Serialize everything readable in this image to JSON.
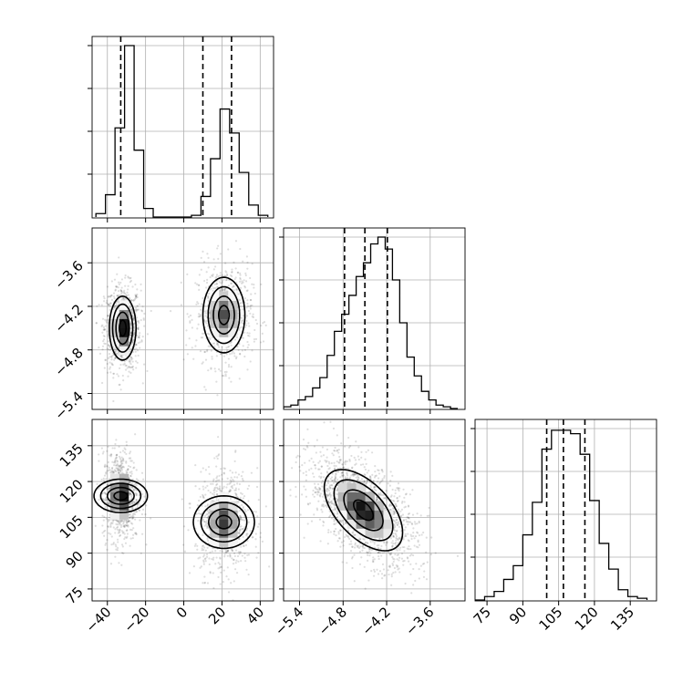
{
  "chart_data": {
    "type": "corner",
    "parameters": [
      {
        "ticks": [
          -40,
          -20,
          0,
          20,
          40
        ],
        "tick_labels": [
          "−40",
          "−20",
          "0",
          "20",
          "40"
        ],
        "range": [
          -48,
          47
        ]
      },
      {
        "ticks": [
          -5.4,
          -4.8,
          -4.2,
          -3.6
        ],
        "tick_labels": [
          "−5.4",
          "−4.8",
          "−4.2",
          "−3.6"
        ],
        "range": [
          -5.62,
          -3.12
        ]
      },
      {
        "ticks": [
          75,
          90,
          105,
          120,
          135
        ],
        "tick_labels": [
          "75",
          "90",
          "105",
          "120",
          "135"
        ],
        "range": [
          70,
          146
        ]
      }
    ],
    "marginals": [
      {
        "param": 0,
        "bin_edges": [
          -46,
          -41,
          -36,
          -31,
          -26,
          -21,
          -16,
          -11,
          -6,
          -1,
          4,
          9,
          14,
          19,
          24,
          29,
          34,
          39,
          44
        ],
        "counts": [
          0.02,
          0.13,
          0.52,
          1.0,
          0.39,
          0.05,
          0,
          0,
          0,
          0,
          0.01,
          0.12,
          0.34,
          0.63,
          0.49,
          0.26,
          0.07,
          0.01
        ],
        "quantiles": [
          -33,
          10,
          25
        ]
      },
      {
        "param": 1,
        "bin_edges": [
          -5.62,
          -5.52,
          -5.42,
          -5.32,
          -5.22,
          -5.12,
          -5.02,
          -4.92,
          -4.82,
          -4.72,
          -4.62,
          -4.52,
          -4.42,
          -4.32,
          -4.22,
          -4.12,
          -4.02,
          -3.92,
          -3.82,
          -3.72,
          -3.62,
          -3.52,
          -3.42,
          -3.32,
          -3.22
        ],
        "counts": [
          0.01,
          0.02,
          0.05,
          0.07,
          0.12,
          0.18,
          0.31,
          0.45,
          0.55,
          0.66,
          0.77,
          0.85,
          0.96,
          1.0,
          0.93,
          0.75,
          0.5,
          0.3,
          0.19,
          0.1,
          0.05,
          0.02,
          0.01,
          0.0
        ],
        "quantiles": [
          -4.78,
          -4.5,
          -4.19
        ]
      },
      {
        "param": 2,
        "bin_edges": [
          70,
          74,
          78,
          82,
          86,
          90,
          94,
          98,
          102,
          106,
          110,
          114,
          118,
          122,
          126,
          130,
          134,
          138,
          142
        ],
        "counts": [
          0.0,
          0.02,
          0.05,
          0.12,
          0.2,
          0.38,
          0.57,
          0.88,
          0.99,
          0.99,
          0.97,
          0.85,
          0.58,
          0.33,
          0.18,
          0.06,
          0.02,
          0.01
        ],
        "quantiles": [
          100,
          107,
          116
        ]
      }
    ],
    "pairs": [
      {
        "x_param": 0,
        "y_param": 1,
        "modes": [
          {
            "center": [
              -32,
              -4.5
            ],
            "sd": [
              3.5,
              0.22
            ],
            "corr": 0.0,
            "weight": 0.55
          },
          {
            "center": [
              21,
              -4.32
            ],
            "sd": [
              5.5,
              0.26
            ],
            "corr": 0.0,
            "weight": 0.45
          }
        ]
      },
      {
        "x_param": 0,
        "y_param": 2,
        "modes": [
          {
            "center": [
              -33,
              114
            ],
            "sd": [
              3.5,
              7.0
            ],
            "corr": 0.0,
            "weight": 0.55
          },
          {
            "center": [
              21,
              103
            ],
            "sd": [
              5.5,
              8.0
            ],
            "corr": 0.0,
            "weight": 0.45
          }
        ]
      },
      {
        "x_param": 1,
        "y_param": 2,
        "modes": [
          {
            "center": [
              -4.52,
              108
            ],
            "sd": [
              0.27,
              8.5
            ],
            "corr": -0.55,
            "weight": 1.0
          }
        ]
      }
    ],
    "contour_levels_sigma": [
      0.5,
      1.0,
      1.5,
      2.0
    ]
  }
}
